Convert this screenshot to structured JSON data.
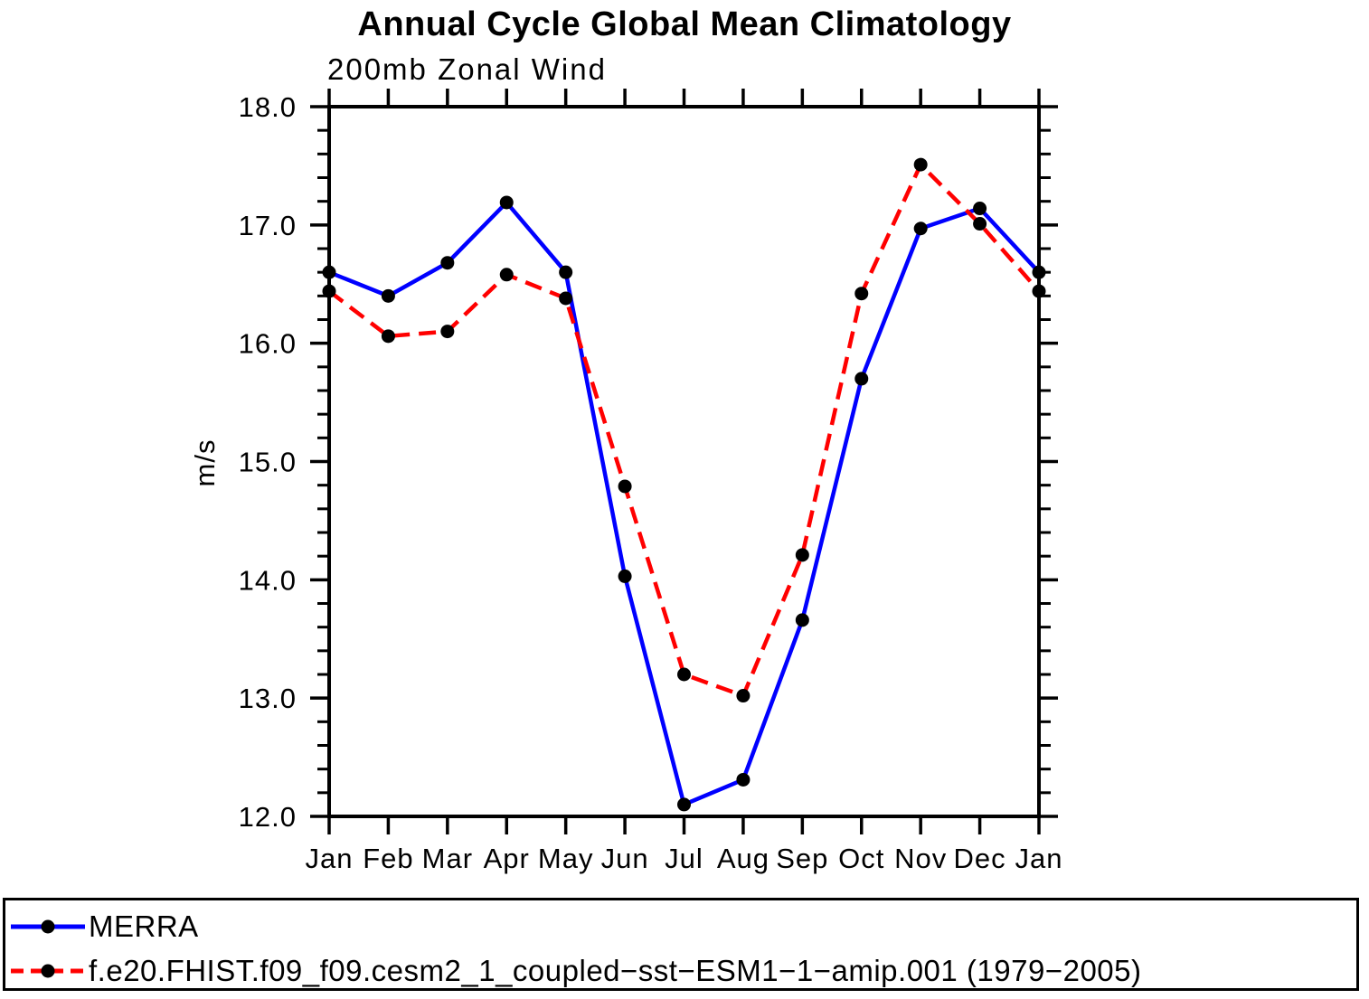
{
  "page": {
    "title": "Annual Cycle Global Mean Climatology"
  },
  "chart_data": {
    "type": "line",
    "title": "Annual Cycle Global Mean Climatology",
    "subtitle": "200mb Zonal Wind",
    "xlabel": "",
    "ylabel": "m/s",
    "categories": [
      "Jan",
      "Feb",
      "Mar",
      "Apr",
      "May",
      "Jun",
      "Jul",
      "Aug",
      "Sep",
      "Oct",
      "Nov",
      "Dec",
      "Jan"
    ],
    "ylim": [
      12.0,
      18.0
    ],
    "ytick_major": 1.0,
    "ytick_minor": 0.2,
    "ytick_labels": [
      "12.0",
      "13.0",
      "14.0",
      "15.0",
      "16.0",
      "17.0",
      "18.0"
    ],
    "grid": false,
    "axis_color": "#000000",
    "marker_color": "#000000",
    "legend_position": "bottom-box",
    "series": [
      {
        "name": "MERRA",
        "color": "#0000ff",
        "style": "solid",
        "marker": "filled-circle",
        "marker_color": "#000000",
        "values": [
          16.6,
          16.4,
          16.68,
          17.19,
          16.6,
          14.03,
          12.1,
          12.31,
          13.66,
          15.7,
          16.97,
          17.14,
          16.6
        ]
      },
      {
        "name": "f.e20.FHIST.f09_f09.cesm2_1_coupled−sst−ESM1−1−amip.001 (1979−2005)",
        "color": "#ff0000",
        "style": "dashed",
        "marker": "filled-circle",
        "marker_color": "#000000",
        "values": [
          16.44,
          16.06,
          16.1,
          16.58,
          16.38,
          14.79,
          13.2,
          13.02,
          14.21,
          16.42,
          17.51,
          17.01,
          16.44
        ]
      }
    ]
  }
}
